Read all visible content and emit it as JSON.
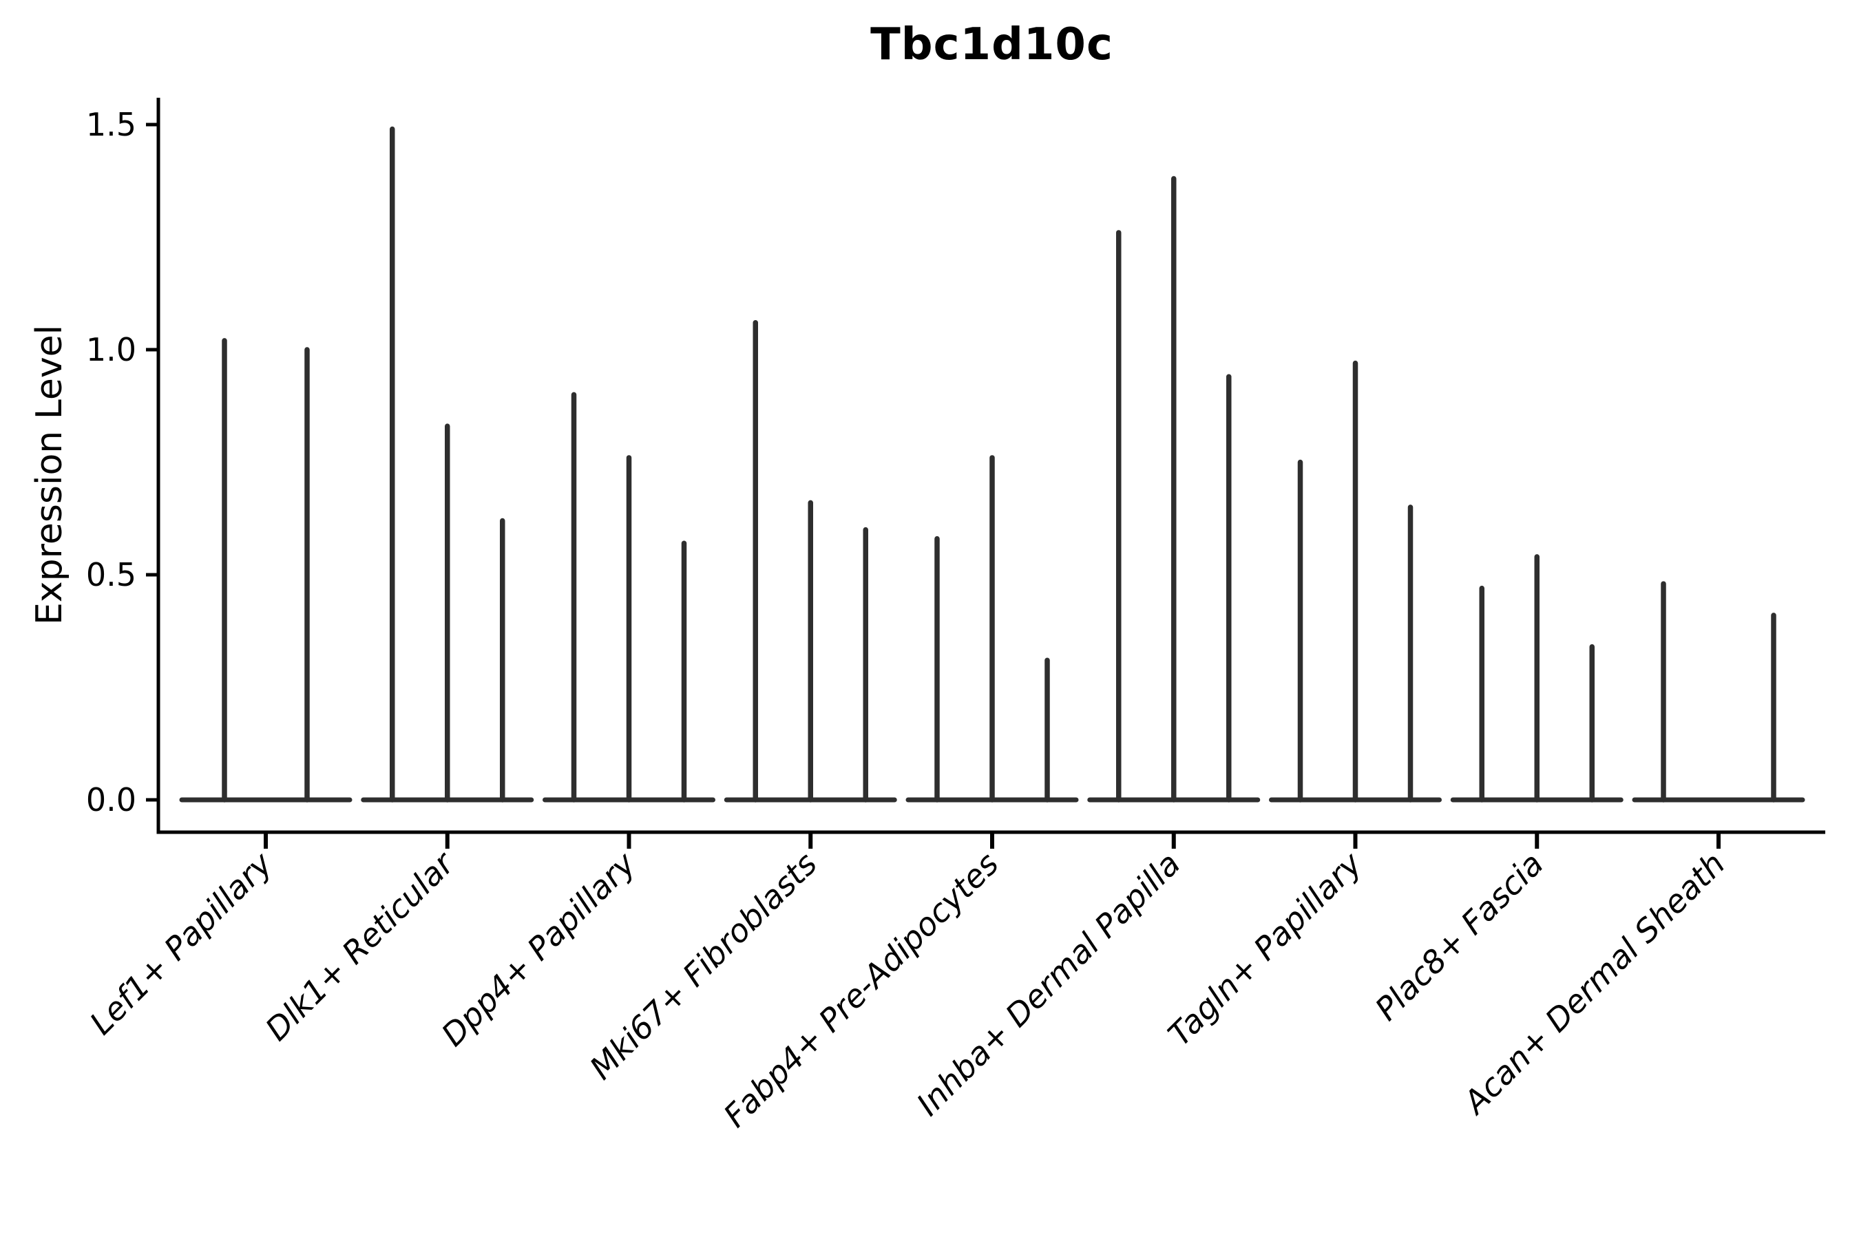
{
  "chart_data": {
    "type": "violin",
    "title": "Tbc1d10c",
    "ylabel": "Expression Level",
    "xlabel": "",
    "grid": false,
    "legend_position": "none",
    "ylim": [
      -0.07,
      1.56
    ],
    "yticks": [
      {
        "value": 0.0,
        "label": "0.0"
      },
      {
        "value": 0.5,
        "label": "0.5"
      },
      {
        "value": 1.0,
        "label": "1.0"
      },
      {
        "value": 1.5,
        "label": "1.5"
      }
    ],
    "categories": [
      {
        "label": "Lef1+ Papillary",
        "violin_max_values": [
          1.02,
          1.0
        ]
      },
      {
        "label": "Dlk1+ Reticular",
        "violin_max_values": [
          1.49,
          0.83,
          0.62
        ]
      },
      {
        "label": "Dpp4+ Papillary",
        "violin_max_values": [
          0.9,
          0.76,
          0.57
        ]
      },
      {
        "label": "Mki67+ Fibroblasts",
        "violin_max_values": [
          1.06,
          0.66,
          0.6
        ]
      },
      {
        "label": "Fabp4+ Pre-Adipocytes",
        "violin_max_values": [
          0.58,
          0.76,
          0.31
        ]
      },
      {
        "label": "Inhba+ Dermal Papilla",
        "violin_max_values": [
          1.26,
          1.38,
          0.94
        ]
      },
      {
        "label": "Tagln+ Papillary",
        "violin_max_values": [
          0.75,
          0.97,
          0.65
        ]
      },
      {
        "label": "Plac8+ Fascia",
        "violin_max_values": [
          0.47,
          0.54,
          0.34
        ]
      },
      {
        "label": "Acan+ Dermal Sheath",
        "violin_max_values": [
          0.48,
          0.0,
          0.41
        ]
      }
    ],
    "colors": {
      "violin": "#2e2e2e",
      "axis": "#000000",
      "text": "#000000",
      "background": "#ffffff"
    }
  }
}
